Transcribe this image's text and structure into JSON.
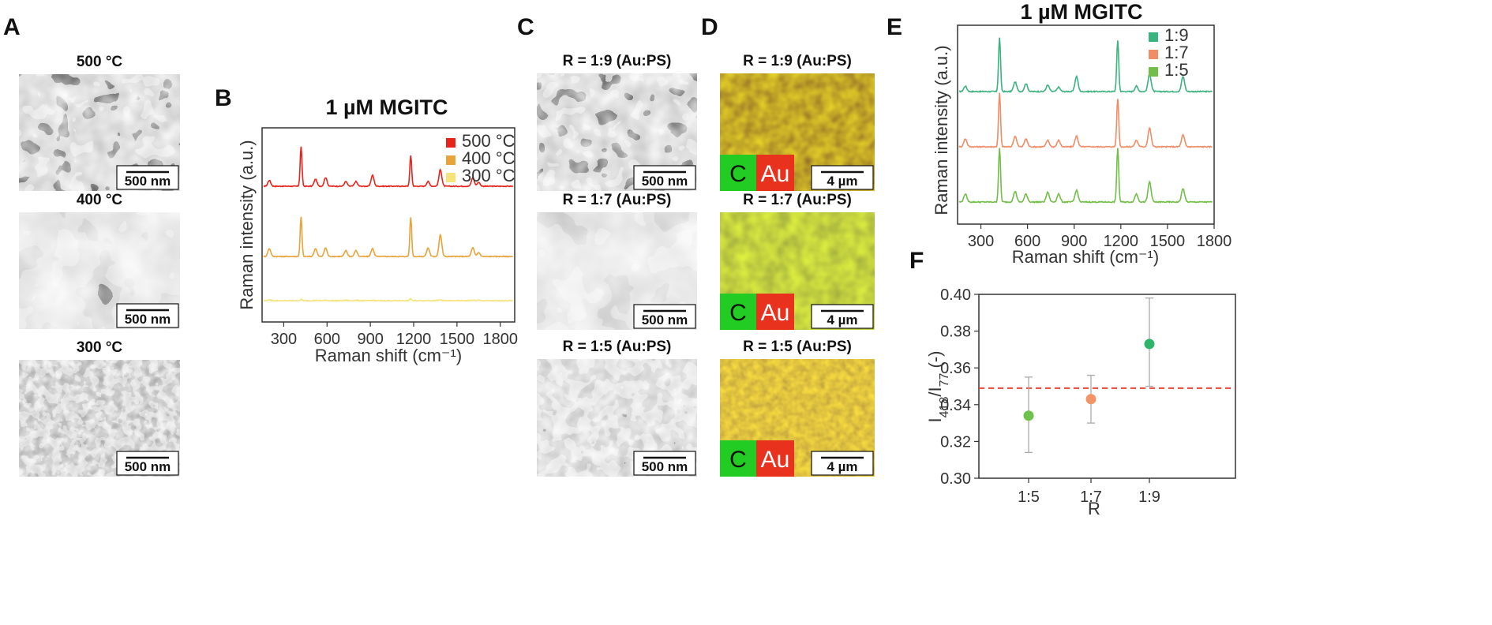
{
  "panel_labels": {
    "A": "A",
    "B": "B",
    "C": "C",
    "D": "D",
    "E": "E",
    "F": "F"
  },
  "panel_a": {
    "images": [
      {
        "title": "500 °C",
        "scalebar": "500 nm",
        "texture": "porous"
      },
      {
        "title": "400 °C",
        "scalebar": "500 nm",
        "texture": "merged"
      },
      {
        "title": "300 °C",
        "scalebar": "500 nm",
        "texture": "cells"
      }
    ]
  },
  "panel_c": {
    "images": [
      {
        "title": "R = 1:9 (Au:PS)",
        "scalebar": "500 nm",
        "texture": "porous"
      },
      {
        "title": "R = 1:7 (Au:PS)",
        "scalebar": "500 nm",
        "texture": "merged"
      },
      {
        "title": "R = 1:5 (Au:PS)",
        "scalebar": "500 nm",
        "texture": "grains"
      }
    ]
  },
  "panel_d": {
    "images": [
      {
        "title": "R = 1:9 (Au:PS)",
        "scalebar": "4 µm",
        "c_label": "C",
        "au_label": "Au",
        "tone": "dark-green"
      },
      {
        "title": "R = 1:7 (Au:PS)",
        "scalebar": "4 µm",
        "c_label": "C",
        "au_label": "Au",
        "tone": "lime"
      },
      {
        "title": "R = 1:5 (Au:PS)",
        "scalebar": "4 µm",
        "c_label": "C",
        "au_label": "Au",
        "tone": "orange"
      }
    ],
    "colors": {
      "c": "#22cc22",
      "au": "#e8321e"
    }
  },
  "chart_b": {
    "title": "1 µM MGITC",
    "xlabel": "Raman shift (cm⁻¹)",
    "ylabel": "Raman intensity  (a.u.)",
    "xticks": [
      "300",
      "600",
      "900",
      "1200",
      "1500",
      "1800"
    ],
    "xlim": [
      150,
      1900
    ],
    "legend": [
      {
        "name": "500 °C",
        "color": "#e8231b"
      },
      {
        "name": "400 °C",
        "color": "#e8a33a"
      },
      {
        "name": "300 °C",
        "color": "#f6e27a"
      }
    ]
  },
  "chart_e": {
    "title": "1 µM MGITC",
    "xlabel": "Raman shift (cm⁻¹)",
    "ylabel": "Raman intensity  (a.u.)",
    "xticks": [
      "300",
      "600",
      "900",
      "1200",
      "1500",
      "1800"
    ],
    "xlim": [
      150,
      1800
    ],
    "legend": [
      {
        "name": "1:9",
        "color": "#3bb37f"
      },
      {
        "name": "1:7",
        "color": "#f08c66"
      },
      {
        "name": "1:5",
        "color": "#72be48"
      }
    ]
  },
  "chart_data": [
    {
      "type": "line",
      "panel": "B",
      "x_range": [
        150,
        1900
      ],
      "peaks_cm-1": [
        200,
        420,
        520,
        590,
        730,
        800,
        915,
        1180,
        1300,
        1385,
        1610,
        1650
      ],
      "series": [
        {
          "name": "500 °C",
          "peak_heights": [
            0.15,
            1.0,
            0.18,
            0.22,
            0.12,
            0.12,
            0.28,
            0.78,
            0.12,
            0.42,
            0.22,
            0.1
          ]
        },
        {
          "name": "400 °C",
          "peak_heights": [
            0.2,
            1.0,
            0.2,
            0.22,
            0.15,
            0.15,
            0.2,
            1.0,
            0.22,
            0.55,
            0.22,
            0.1
          ]
        },
        {
          "name": "300 °C",
          "peak_heights": [
            0.02,
            0.03,
            0.01,
            0.01,
            0.01,
            0.01,
            0.01,
            0.05,
            0.01,
            0.02,
            0.01,
            0.01
          ]
        }
      ]
    },
    {
      "type": "line",
      "panel": "E",
      "x_range": [
        150,
        1800
      ],
      "peaks_cm-1": [
        200,
        420,
        520,
        590,
        730,
        800,
        915,
        1180,
        1300,
        1385,
        1600
      ],
      "series": [
        {
          "name": "1:9",
          "peak_heights": [
            0.1,
            1.0,
            0.18,
            0.15,
            0.12,
            0.08,
            0.28,
            0.95,
            0.1,
            0.33,
            0.28
          ]
        },
        {
          "name": "1:7",
          "peak_heights": [
            0.15,
            1.0,
            0.2,
            0.15,
            0.12,
            0.12,
            0.2,
            0.9,
            0.12,
            0.35,
            0.22
          ]
        },
        {
          "name": "1:5",
          "peak_heights": [
            0.15,
            1.0,
            0.2,
            0.15,
            0.18,
            0.15,
            0.22,
            1.0,
            0.15,
            0.38,
            0.25
          ]
        }
      ]
    },
    {
      "type": "scatter",
      "panel": "F",
      "categories": [
        "1:5",
        "1:7",
        "1:9"
      ],
      "xlabel": "R",
      "ylabel": "I418/I77 (-)",
      "ylim": [
        0.3,
        0.4
      ],
      "yticks": [
        "0.30",
        "0.32",
        "0.34",
        "0.36",
        "0.38",
        "0.40"
      ],
      "values": [
        0.334,
        0.343,
        0.373
      ],
      "errors_low": [
        0.314,
        0.33,
        0.35
      ],
      "errors_high": [
        0.355,
        0.356,
        0.398
      ],
      "colors": [
        "#6cc24a",
        "#f29466",
        "#2db56b"
      ],
      "reference_line": 0.349,
      "reference_color": "#ee4433"
    }
  ]
}
